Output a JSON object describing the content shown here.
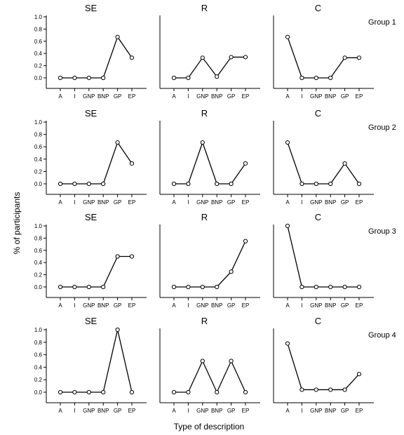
{
  "xlabel": "Type of description",
  "ylabel": "% of participants",
  "chart_data": {
    "type": "line",
    "categories": [
      "A",
      "I",
      "GNP",
      "BNP",
      "GP",
      "EP"
    ],
    "yticks": [
      "0.0",
      "0.2",
      "0.4",
      "0.6",
      "0.8",
      "1.0"
    ],
    "ylim": [
      0,
      1
    ],
    "columns": [
      "SE",
      "R",
      "C"
    ],
    "groups": [
      {
        "label": "Group 1",
        "panels": [
          {
            "title": "SE",
            "values": [
              0,
              0,
              0,
              0,
              0.67,
              0.33
            ]
          },
          {
            "title": "R",
            "values": [
              0,
              0,
              0.33,
              0.02,
              0.34,
              0.34
            ]
          },
          {
            "title": "C",
            "values": [
              0.67,
              0,
              0,
              0,
              0.33,
              0.33
            ]
          }
        ]
      },
      {
        "label": "Group 2",
        "panels": [
          {
            "title": "SE",
            "values": [
              0,
              0,
              0,
              0,
              0.67,
              0.33
            ]
          },
          {
            "title": "R",
            "values": [
              0,
              0,
              0.67,
              0,
              0,
              0.33
            ]
          },
          {
            "title": "C",
            "values": [
              0.67,
              0,
              0,
              0,
              0.33,
              0
            ]
          }
        ]
      },
      {
        "label": "Group 3",
        "panels": [
          {
            "title": "SE",
            "values": [
              0,
              0,
              0,
              0,
              0.5,
              0.5
            ]
          },
          {
            "title": "R",
            "values": [
              0,
              0,
              0,
              0,
              0.25,
              0.75
            ]
          },
          {
            "title": "C",
            "values": [
              1.0,
              0,
              0,
              0,
              0,
              0
            ]
          }
        ]
      },
      {
        "label": "Group 4",
        "panels": [
          {
            "title": "SE",
            "values": [
              0,
              0,
              0,
              0,
              1.0,
              0
            ]
          },
          {
            "title": "R",
            "values": [
              0,
              0,
              0.5,
              0,
              0.5,
              0
            ]
          },
          {
            "title": "C",
            "values": [
              0.78,
              0.04,
              0.04,
              0.04,
              0.04,
              0.29
            ]
          }
        ]
      }
    ]
  }
}
